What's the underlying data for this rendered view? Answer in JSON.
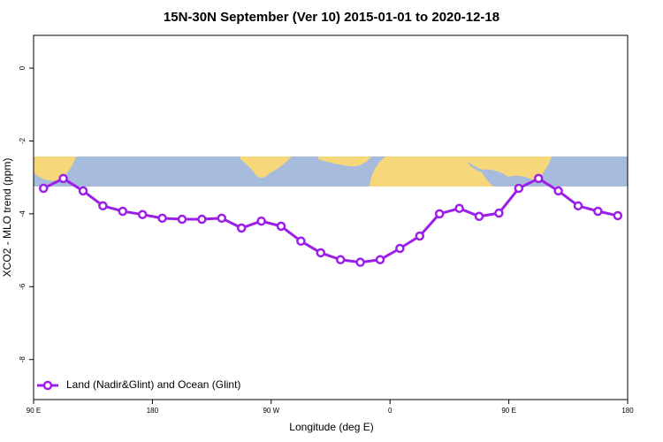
{
  "chart_data": {
    "type": "line",
    "title": "15N-30N September (Ver 10)   2015-01-01 to 2020-12-18",
    "x_label": "Longitude (deg E)",
    "y_label": "XCO2 - MLO trend (ppm)",
    "x": [
      97.5,
      112.5,
      127.5,
      142.5,
      157.5,
      172.5,
      187.5,
      202.5,
      217.5,
      232.5,
      247.5,
      262.5,
      277.5,
      292.5,
      307.5,
      322.5,
      337.5,
      352.5,
      367.5,
      382.5,
      397.5,
      412.5,
      427.5,
      442.5,
      457.5,
      472.5,
      487.5,
      502.5,
      517.5,
      532.5
    ],
    "series": [
      {
        "name": "Land (Nadir&Glint) and Ocean (Glint)",
        "color": "#9b1fe8",
        "values": [
          -3.3,
          -3.03,
          -3.37,
          -3.78,
          -3.93,
          -4.02,
          -4.12,
          -4.15,
          -4.15,
          -4.12,
          -4.39,
          -4.2,
          -4.34,
          -4.75,
          -5.07,
          -5.26,
          -5.33,
          -5.26,
          -4.95,
          -4.61,
          -4.0,
          -3.85,
          -4.07,
          -3.98,
          -3.3,
          -3.03,
          -3.37,
          -3.78,
          -3.93,
          -4.05
        ]
      }
    ],
    "xlim": [
      90,
      540
    ],
    "xticks": [
      {
        "value": 90,
        "label": "90 E"
      },
      180,
      {
        "value": 270,
        "label": "90 W"
      },
      {
        "value": 360,
        "label": "0"
      },
      {
        "value": 450,
        "label": "90 E"
      },
      {
        "value": 540,
        "label": "180"
      }
    ],
    "ylim": [
      -9.1,
      0.9
    ],
    "yticks": [
      0,
      -2,
      -4,
      -6,
      -8
    ],
    "legend": "bottom-left"
  }
}
